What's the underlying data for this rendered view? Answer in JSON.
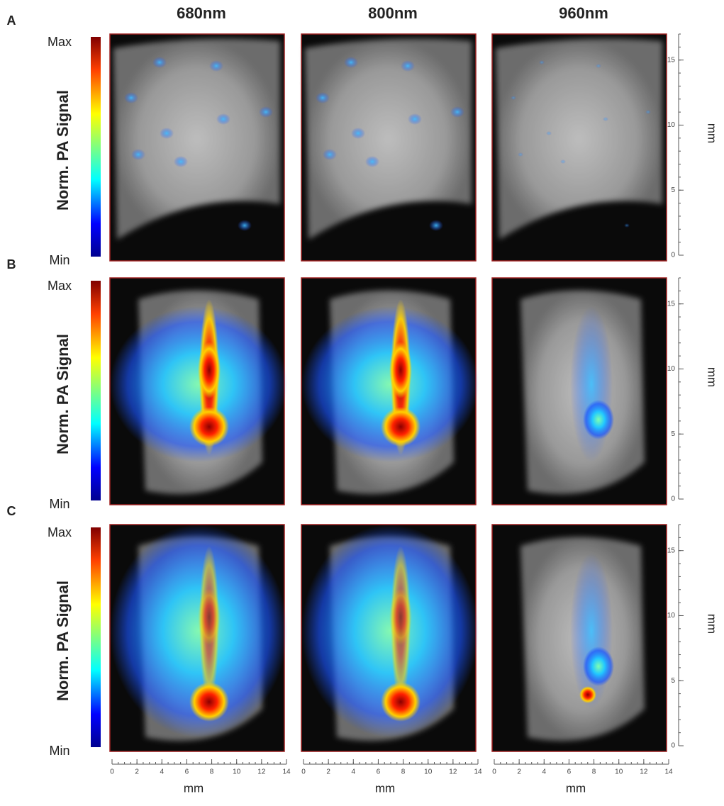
{
  "columns": [
    "680nm",
    "800nm",
    "960nm"
  ],
  "rows": [
    {
      "label": "A",
      "colorbar": {
        "max": "Max",
        "min": "Min",
        "title": "Norm. PA Signal"
      }
    },
    {
      "label": "B",
      "colorbar": {
        "max": "Max",
        "min": "Min",
        "title": "Norm. PA Signal"
      }
    },
    {
      "label": "C",
      "colorbar": {
        "max": "Max",
        "min": "Min",
        "title": "Norm. PA Signal"
      }
    }
  ],
  "y_axis": {
    "label": "mm",
    "lim": [
      0,
      17
    ],
    "ticks": [
      0,
      5,
      10,
      15
    ]
  },
  "x_axis": {
    "label": "mm",
    "lim": [
      0,
      14
    ],
    "ticks": [
      0,
      2,
      4,
      6,
      8,
      10,
      12,
      14
    ]
  }
}
